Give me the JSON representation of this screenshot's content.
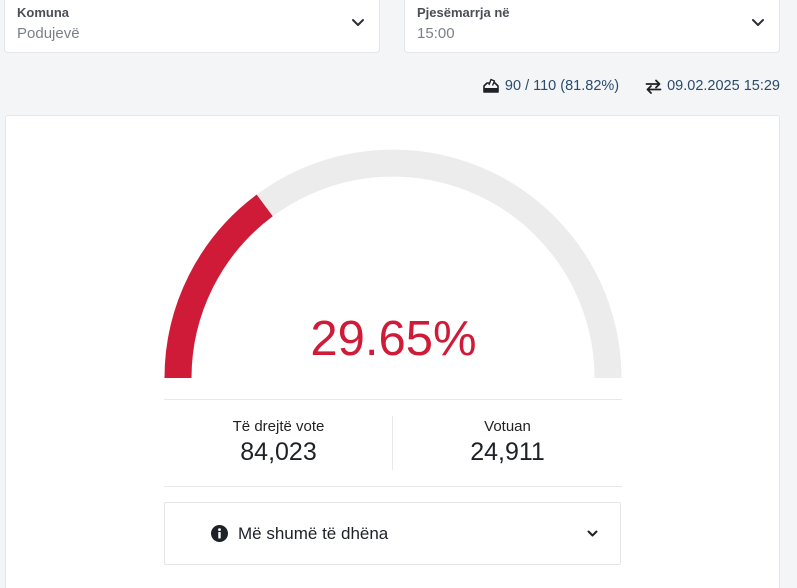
{
  "filters": {
    "komuna": {
      "label": "Komuna",
      "value": "Podujevë"
    },
    "pjesemarrja": {
      "label": "Pjesëmarrja në",
      "value": "15:00"
    }
  },
  "meta": {
    "stations": "90 / 110 (81.82%)",
    "updated": "09.02.2025 15:29"
  },
  "gauge": {
    "percent_label": "29.65%",
    "fraction": 0.2965,
    "fill_color": "#cf1b38",
    "track_color": "#ececec"
  },
  "stats": {
    "eligible_label": "Të drejtë vote",
    "eligible_value": "84,023",
    "voted_label": "Votuan",
    "voted_value": "24,911"
  },
  "more_info": {
    "label": "Më shumë të dhëna"
  }
}
